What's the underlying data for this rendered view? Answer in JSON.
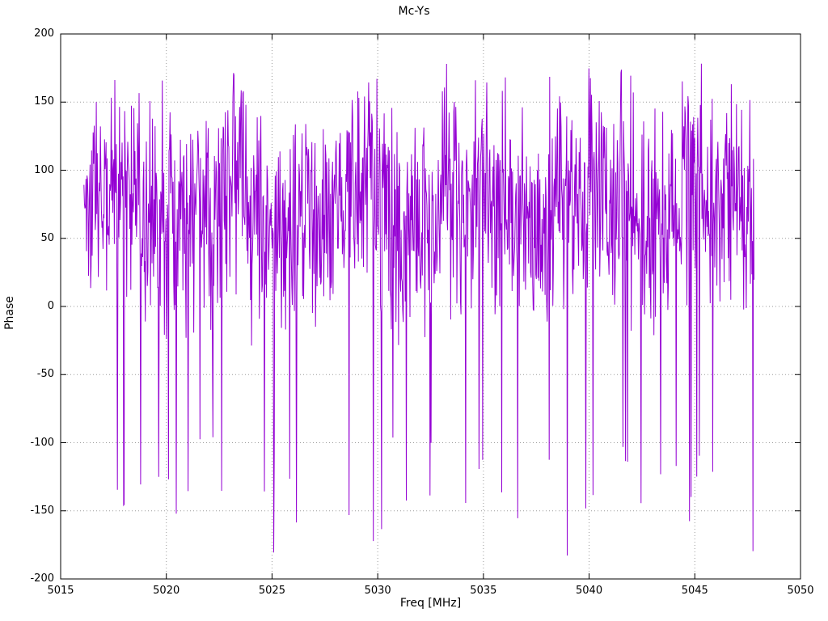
{
  "chart_data": {
    "type": "line",
    "title": "Mc-Ys",
    "xlabel": "Freq [MHz]",
    "ylabel": "Phase",
    "xlim": [
      5015,
      5050
    ],
    "ylim": [
      -200,
      200
    ],
    "x_ticks": [
      5015,
      5020,
      5025,
      5030,
      5035,
      5040,
      5045,
      5050
    ],
    "y_ticks": [
      -200,
      -150,
      -100,
      -50,
      0,
      50,
      100,
      150,
      200
    ],
    "grid": "dotted",
    "grid_color": "#9a9a9a",
    "border_color": "#000000",
    "legend": false,
    "series": [
      {
        "name": "Mc-Ys",
        "color": "#9400d3",
        "x_start": 5016.1,
        "x_end": 5047.8,
        "n_points": 1300,
        "seed": 1337,
        "y_center": 78,
        "y_spread": 78,
        "y_typical_band": [
          0,
          150
        ],
        "spike_probability": 0.05,
        "spike_range": [
          -185,
          -95
        ],
        "wrap_at": 180,
        "description": "Dense noisy phase-vs-frequency trace; values mostly between 0 and 150 degrees with frequent sharp negative spikes wrapping toward -180 degrees and occasional peaks near +180 degrees"
      }
    ]
  }
}
